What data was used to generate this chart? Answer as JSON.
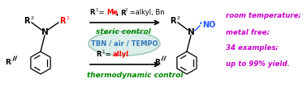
{
  "bg_color": "#ffffff",
  "fig_width": 3.78,
  "fig_height": 1.08,
  "dpi": 100,
  "colors": {
    "black": "#000000",
    "red": "#ff0000",
    "green": "#008800",
    "blue_no": "#2255ff",
    "magenta": "#cc00cc",
    "ellipse_fill": "#d8ede8",
    "ellipse_edge": "#88bbaa",
    "ellipse_text": "#3377bb"
  },
  "right_text_lines": [
    "room temperature;",
    "metal free;",
    "34 examples;",
    "up to 99% yield."
  ]
}
